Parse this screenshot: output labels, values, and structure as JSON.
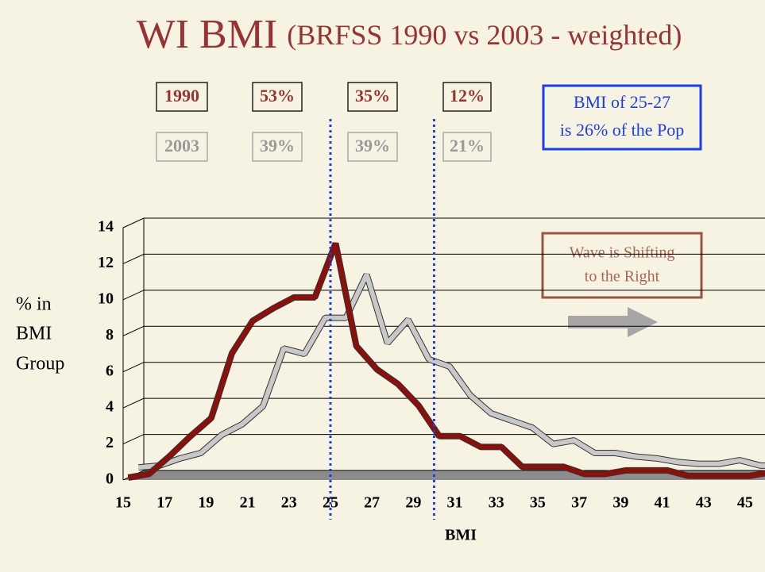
{
  "chart_data": {
    "type": "line3d",
    "title": "WI BMI",
    "subtitle": "(BRFSS 1990 vs 2003 - weighted)",
    "x_label": "BMI",
    "y_label": [
      "% in",
      "BMI",
      "Group"
    ],
    "x": [
      15,
      16,
      17,
      18,
      19,
      20,
      21,
      22,
      23,
      24,
      25,
      26,
      27,
      28,
      29,
      30,
      31,
      32,
      33,
      34,
      35,
      36,
      37,
      38,
      39,
      40,
      41,
      42,
      43,
      44,
      45,
      46
    ],
    "xlim": [
      15,
      46
    ],
    "xticks": [
      15,
      17,
      19,
      21,
      23,
      25,
      27,
      29,
      31,
      33,
      35,
      37,
      39,
      41,
      43,
      45
    ],
    "ylim": [
      0,
      14
    ],
    "yticks": [
      0,
      2,
      4,
      6,
      8,
      10,
      12,
      14
    ],
    "grid": true,
    "vlines": [
      25,
      30
    ],
    "series": [
      {
        "name": "2003",
        "color": "#c8c8c8",
        "shares": [
          "39%",
          "39%",
          "21%"
        ],
        "values": [
          0.3,
          0.4,
          0.8,
          1.1,
          2.1,
          2.7,
          3.7,
          6.9,
          6.6,
          8.6,
          8.6,
          11,
          7.2,
          8.5,
          6.3,
          5.9,
          4.3,
          3.3,
          2.9,
          2.5,
          1.6,
          1.8,
          1.1,
          1.1,
          0.9,
          0.8,
          0.6,
          0.5,
          0.5,
          0.7,
          0.4,
          0.4
        ]
      },
      {
        "name": "1990",
        "color": "#8b0f0a",
        "shares": [
          "53%",
          "35%",
          "12%"
        ],
        "values": [
          0,
          0.2,
          1.2,
          2.3,
          3.3,
          6.9,
          8.7,
          9.4,
          10,
          10,
          13,
          7.3,
          6,
          5.2,
          4,
          2.3,
          2.3,
          1.7,
          1.7,
          0.6,
          0.6,
          0.6,
          0.2,
          0.2,
          0.4,
          0.4,
          0.4,
          0.1,
          0.1,
          0.1,
          0.1,
          0.3
        ]
      }
    ],
    "annotations": [
      [
        "BMI of 25-27",
        "is 26% of the Pop"
      ],
      [
        "Wave is Shifting",
        "to the Right"
      ]
    ]
  }
}
